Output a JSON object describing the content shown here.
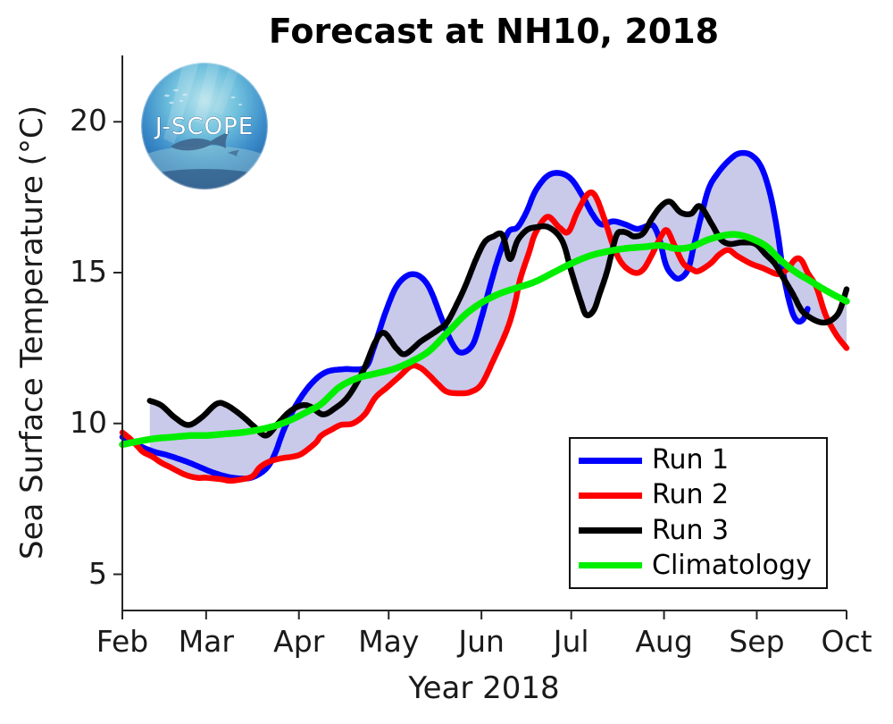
{
  "title": "Forecast at NH10, 2018",
  "logo": {
    "text": "J-SCOPE"
  },
  "axes": {
    "xlabel": "Year 2018",
    "ylabel": "Sea Surface Temperature (°C)",
    "x_ticks": [
      {
        "day": 0,
        "label": "Feb"
      },
      {
        "day": 28,
        "label": "Mar"
      },
      {
        "day": 59,
        "label": "Apr"
      },
      {
        "day": 89,
        "label": "May"
      },
      {
        "day": 120,
        "label": "Jun"
      },
      {
        "day": 150,
        "label": "Jul"
      },
      {
        "day": 181,
        "label": "Aug"
      },
      {
        "day": 212,
        "label": "Sep"
      },
      {
        "day": 242,
        "label": "Oct"
      }
    ],
    "y_ticks": [
      {
        "value": 20,
        "label": "20"
      },
      {
        "value": 15,
        "label": "15"
      },
      {
        "value": 10,
        "label": "10"
      },
      {
        "value": 5,
        "label": "5"
      }
    ],
    "spine_color": "#262626"
  },
  "legend": {
    "entries": [
      {
        "label": "Run 1",
        "color": "#0000ff"
      },
      {
        "label": "Run 2",
        "color": "#ff0000"
      },
      {
        "label": "Run 3",
        "color": "#000000"
      },
      {
        "label": "Climatology",
        "color": "#00ef00"
      }
    ]
  },
  "chart_data": {
    "type": "line",
    "title": "Forecast at NH10, 2018",
    "xlabel": "Year 2018",
    "ylabel": "Sea Surface Temperature (°C)",
    "x_unit": "days since 2018-02-01",
    "x_range_days": [
      0,
      242
    ],
    "ylim": [
      3.8,
      22.2
    ],
    "grid": false,
    "legend_position": "lower right inside axes",
    "envelope": {
      "fill": "#c9c9ea",
      "across": [
        "Run 1",
        "Run 2",
        "Run 3"
      ],
      "description": "shaded min-max spread of the three forecast runs"
    },
    "series": [
      {
        "name": "Run 1",
        "color": "#0000ff",
        "width": 6.5,
        "x": [
          0,
          3,
          7,
          11,
          15,
          21,
          26,
          31,
          37,
          43,
          48,
          51,
          54,
          58,
          63,
          68,
          74,
          81,
          84,
          88,
          92,
          97,
          102,
          107,
          110,
          113,
          117,
          120,
          123,
          126,
          129,
          132,
          135,
          138,
          142,
          146,
          150,
          154,
          157,
          160,
          164,
          168,
          172,
          175.5,
          177.5,
          179.5,
          181.5,
          183.5,
          186,
          189,
          191,
          193.5,
          196,
          199,
          202.5,
          206,
          210,
          213.5,
          216.5,
          219,
          221,
          223.5,
          225.5,
          227.5,
          229
        ],
        "y": [
          9.55,
          9.4,
          9.2,
          9.05,
          8.95,
          8.75,
          8.55,
          8.35,
          8.2,
          8.2,
          8.5,
          9.0,
          9.8,
          10.6,
          11.3,
          11.7,
          11.8,
          11.85,
          12.5,
          13.7,
          14.6,
          14.95,
          14.6,
          13.4,
          12.7,
          12.35,
          12.6,
          13.5,
          14.6,
          15.6,
          16.35,
          16.5,
          17.0,
          17.7,
          18.2,
          18.3,
          18.1,
          17.5,
          16.95,
          16.6,
          16.7,
          16.6,
          16.45,
          16.55,
          16.55,
          16.1,
          15.3,
          14.95,
          14.8,
          15.1,
          15.9,
          16.9,
          17.8,
          18.3,
          18.7,
          18.95,
          18.9,
          18.5,
          17.6,
          16.3,
          14.9,
          13.8,
          13.4,
          13.45,
          13.8
        ]
      },
      {
        "name": "Run 2",
        "color": "#ff0000",
        "width": 6.5,
        "x": [
          0,
          2.5,
          5,
          7,
          10,
          13,
          16,
          21,
          25,
          28,
          33,
          36,
          40,
          43.5,
          46,
          49.5,
          53.5,
          57,
          60,
          64.5,
          66.5,
          70,
          73,
          77,
          81,
          84.5,
          88.5,
          92.5,
          96.5,
          99.5,
          102.5,
          105.5,
          108.5,
          113,
          116.5,
          120,
          124,
          128.5,
          131,
          133,
          136,
          138,
          142,
          146,
          149,
          152,
          155.5,
          158,
          161,
          164,
          167,
          171,
          174,
          177,
          180,
          182,
          184.5,
          187.5,
          190.5,
          192.5,
          196.5,
          199.5,
          202.5,
          205.5,
          210,
          214,
          219,
          222,
          225,
          227,
          229,
          232,
          235,
          238.5,
          242
        ],
        "y": [
          9.7,
          9.5,
          9.25,
          9.05,
          8.9,
          8.7,
          8.55,
          8.3,
          8.2,
          8.2,
          8.15,
          8.1,
          8.15,
          8.25,
          8.55,
          8.75,
          8.85,
          8.9,
          9.0,
          9.35,
          9.6,
          9.8,
          9.95,
          10.0,
          10.3,
          10.85,
          11.2,
          11.55,
          11.9,
          11.85,
          11.6,
          11.3,
          11.05,
          11.0,
          11.05,
          11.3,
          12.1,
          13.1,
          13.9,
          14.8,
          15.7,
          16.3,
          16.85,
          16.5,
          16.35,
          17.0,
          17.6,
          17.55,
          16.8,
          15.9,
          15.3,
          15.0,
          15.1,
          15.6,
          16.2,
          16.4,
          15.9,
          15.3,
          15.1,
          15.05,
          15.3,
          15.6,
          15.75,
          15.55,
          15.3,
          15.15,
          14.95,
          15.1,
          15.45,
          15.4,
          15.0,
          14.5,
          13.6,
          12.95,
          12.5
        ]
      },
      {
        "name": "Run 3",
        "color": "#000000",
        "width": 6.5,
        "x": [
          9.2,
          13,
          17.5,
          22,
          26.5,
          31.5,
          35,
          40,
          44,
          48,
          52,
          56,
          60,
          63,
          67,
          71,
          75.5,
          80.5,
          84.5,
          87.5,
          91.5,
          94.5,
          99.5,
          102.5,
          105.5,
          108.5,
          112,
          115,
          118,
          121,
          124,
          127,
          129.5,
          132,
          135,
          138,
          142.5,
          147,
          150,
          153,
          155,
          157.5,
          159.5,
          162,
          165,
          167,
          169,
          171,
          174,
          177,
          180,
          183,
          186.5,
          190,
          193,
          197,
          200,
          203,
          207,
          211.5,
          215,
          218,
          221,
          224,
          227,
          230,
          233.5,
          236.5,
          239.5,
          242
        ],
        "y": [
          10.75,
          10.6,
          10.2,
          9.95,
          10.2,
          10.65,
          10.6,
          10.25,
          9.9,
          9.6,
          10.0,
          10.4,
          10.6,
          10.55,
          10.3,
          10.5,
          10.9,
          11.75,
          12.7,
          13.0,
          12.5,
          12.3,
          12.7,
          12.9,
          13.1,
          13.35,
          14.0,
          14.65,
          15.4,
          16.0,
          16.2,
          16.25,
          15.45,
          16.05,
          16.4,
          16.5,
          16.5,
          16.05,
          15.05,
          14.1,
          13.6,
          13.75,
          14.3,
          15.05,
          16.2,
          16.35,
          16.3,
          16.2,
          16.3,
          16.8,
          17.2,
          17.35,
          17.0,
          16.95,
          17.2,
          16.6,
          16.1,
          15.95,
          16.0,
          15.95,
          15.6,
          15.3,
          14.8,
          14.3,
          13.75,
          13.5,
          13.35,
          13.4,
          13.7,
          14.45
        ]
      },
      {
        "name": "Climatology",
        "color": "#00ef00",
        "width": 7.5,
        "x": [
          0,
          5,
          11,
          17,
          23,
          28,
          34,
          40,
          46,
          52,
          57,
          62,
          66.5,
          72.5,
          78.5,
          84.5,
          90.5,
          96.5,
          102.5,
          108.5,
          114.5,
          120,
          126,
          132,
          138,
          144,
          150,
          156,
          162,
          168,
          174,
          180,
          185,
          190,
          196,
          202,
          206,
          211,
          215.5,
          219,
          222.5,
          226,
          229.5,
          233.5,
          238,
          242
        ],
        "y": [
          9.3,
          9.4,
          9.5,
          9.55,
          9.6,
          9.6,
          9.65,
          9.7,
          9.8,
          9.95,
          10.15,
          10.4,
          10.65,
          11.2,
          11.5,
          11.65,
          11.8,
          12.05,
          12.4,
          13.0,
          13.6,
          14.0,
          14.3,
          14.5,
          14.7,
          15.0,
          15.3,
          15.55,
          15.7,
          15.8,
          15.85,
          15.9,
          15.8,
          15.85,
          16.1,
          16.25,
          16.25,
          16.1,
          15.85,
          15.5,
          15.2,
          14.95,
          14.75,
          14.5,
          14.25,
          14.05
        ]
      }
    ]
  }
}
